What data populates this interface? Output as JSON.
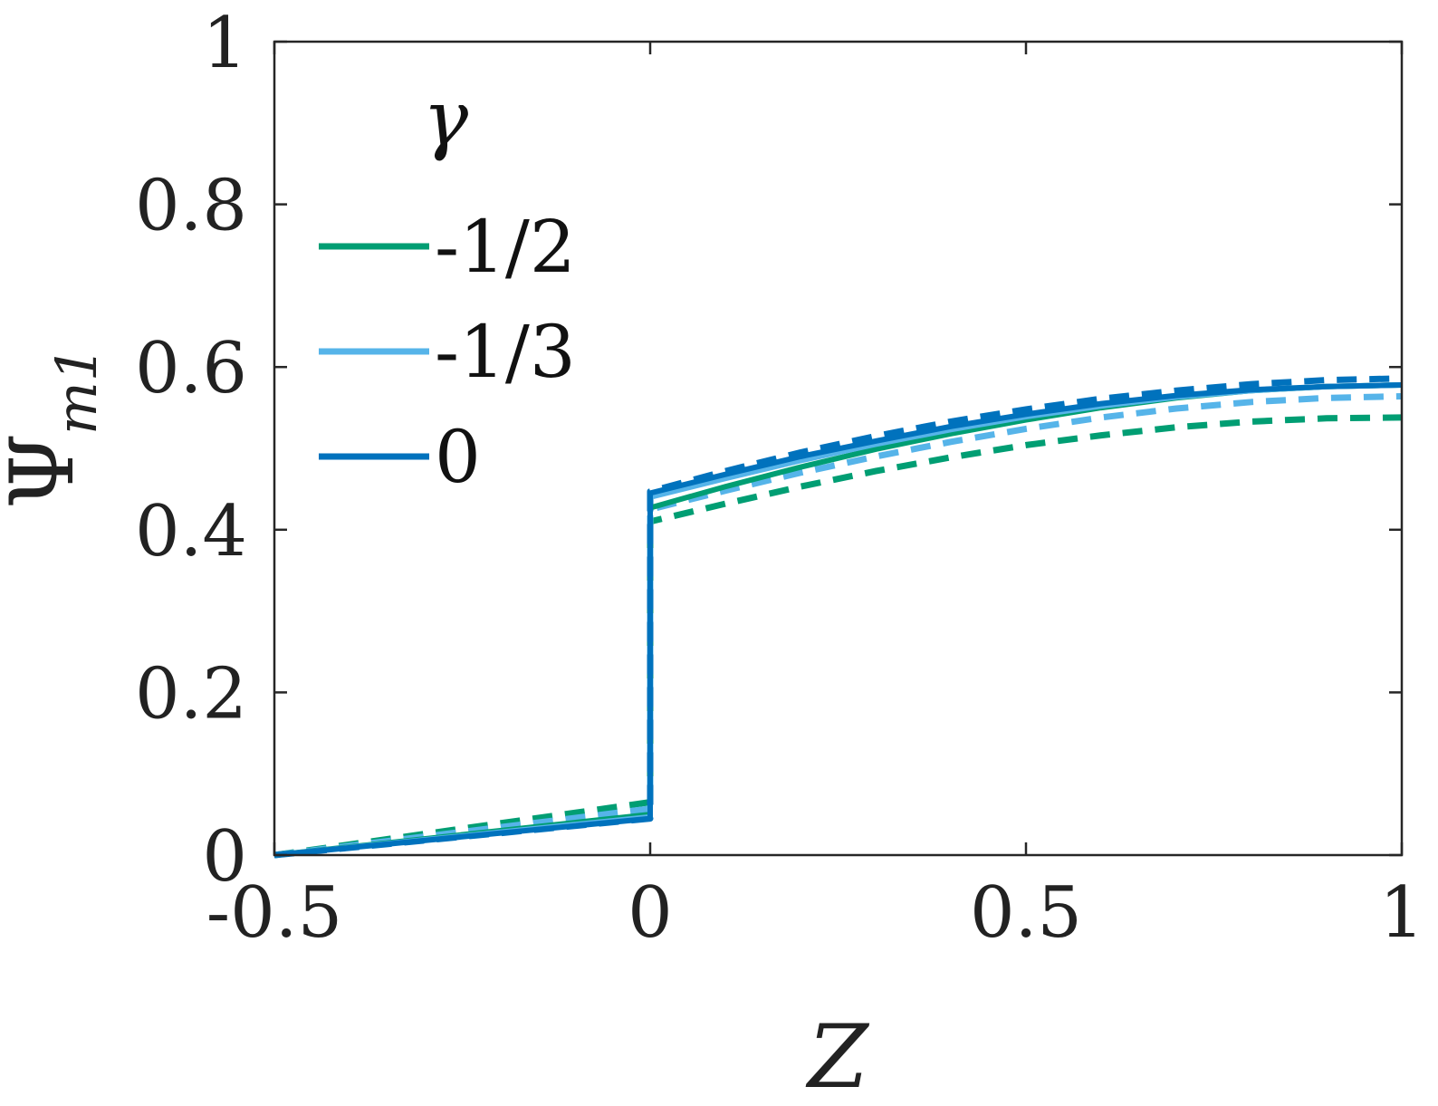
{
  "chart_data": {
    "type": "line",
    "title": "",
    "xlabel": "Z",
    "ylabel": "Ψ",
    "ylabel_sub": "m1",
    "xlim": [
      -0.5,
      1
    ],
    "ylim": [
      0,
      1
    ],
    "xticks": [
      -0.5,
      0,
      0.5,
      1
    ],
    "xtick_labels": [
      "-0.5",
      "0",
      "0.5",
      "1"
    ],
    "yticks": [
      0,
      0.2,
      0.4,
      0.6,
      0.8,
      1
    ],
    "ytick_labels": [
      "0",
      "0.2",
      "0.4",
      "0.6",
      "0.8",
      "1"
    ],
    "grid": false,
    "legend": {
      "title": "γ",
      "placement": "top-left",
      "entries": [
        {
          "label": "-1/2",
          "color": "#009E73"
        },
        {
          "label": "-1/3",
          "color": "#56B4E9"
        },
        {
          "label": "0",
          "color": "#0072BD"
        }
      ]
    },
    "series": [
      {
        "name": "-1/2",
        "style": "solid",
        "color": "#009E73",
        "x": [
          -0.5,
          0,
          0,
          0.1,
          0.2,
          0.3,
          0.4,
          0.5,
          0.6,
          0.7,
          0.8,
          0.9,
          1.0
        ],
        "y": [
          0,
          0.05,
          0.427,
          0.453,
          0.477,
          0.499,
          0.518,
          0.535,
          0.55,
          0.562,
          0.571,
          0.576,
          0.578
        ]
      },
      {
        "name": "-1/2",
        "style": "dashed",
        "color": "#009E73",
        "x": [
          -0.5,
          0,
          0,
          0.1,
          0.2,
          0.3,
          0.4,
          0.5,
          0.6,
          0.7,
          0.8,
          0.9,
          1.0
        ],
        "y": [
          0,
          0.065,
          0.41,
          0.432,
          0.453,
          0.472,
          0.489,
          0.504,
          0.516,
          0.526,
          0.533,
          0.537,
          0.538
        ]
      },
      {
        "name": "-1/3",
        "style": "solid",
        "color": "#56B4E9",
        "x": [
          -0.5,
          0,
          0,
          0.1,
          0.2,
          0.3,
          0.4,
          0.5,
          0.6,
          0.7,
          0.8,
          0.9,
          1.0
        ],
        "y": [
          0,
          0.047,
          0.44,
          0.463,
          0.485,
          0.505,
          0.523,
          0.539,
          0.552,
          0.563,
          0.571,
          0.576,
          0.578
        ]
      },
      {
        "name": "-1/3",
        "style": "dashed",
        "color": "#56B4E9",
        "x": [
          -0.5,
          0,
          0,
          0.1,
          0.2,
          0.3,
          0.4,
          0.5,
          0.6,
          0.7,
          0.8,
          0.9,
          1.0
        ],
        "y": [
          0,
          0.057,
          0.425,
          0.448,
          0.47,
          0.49,
          0.508,
          0.524,
          0.538,
          0.549,
          0.557,
          0.562,
          0.564
        ]
      },
      {
        "name": "0",
        "style": "solid",
        "color": "#0072BD",
        "x": [
          -0.5,
          0,
          0,
          0.1,
          0.2,
          0.3,
          0.4,
          0.5,
          0.6,
          0.7,
          0.8,
          0.9,
          1.0
        ],
        "y": [
          0,
          0.045,
          0.445,
          0.468,
          0.49,
          0.509,
          0.527,
          0.542,
          0.555,
          0.565,
          0.572,
          0.576,
          0.578
        ]
      },
      {
        "name": "0",
        "style": "dashed",
        "color": "#0072BD",
        "x": [
          -0.5,
          0,
          0,
          0.1,
          0.2,
          0.3,
          0.4,
          0.5,
          0.6,
          0.7,
          0.8,
          0.9,
          1.0
        ],
        "y": [
          0,
          0.045,
          0.447,
          0.472,
          0.495,
          0.515,
          0.533,
          0.548,
          0.561,
          0.571,
          0.579,
          0.584,
          0.586
        ]
      }
    ]
  }
}
